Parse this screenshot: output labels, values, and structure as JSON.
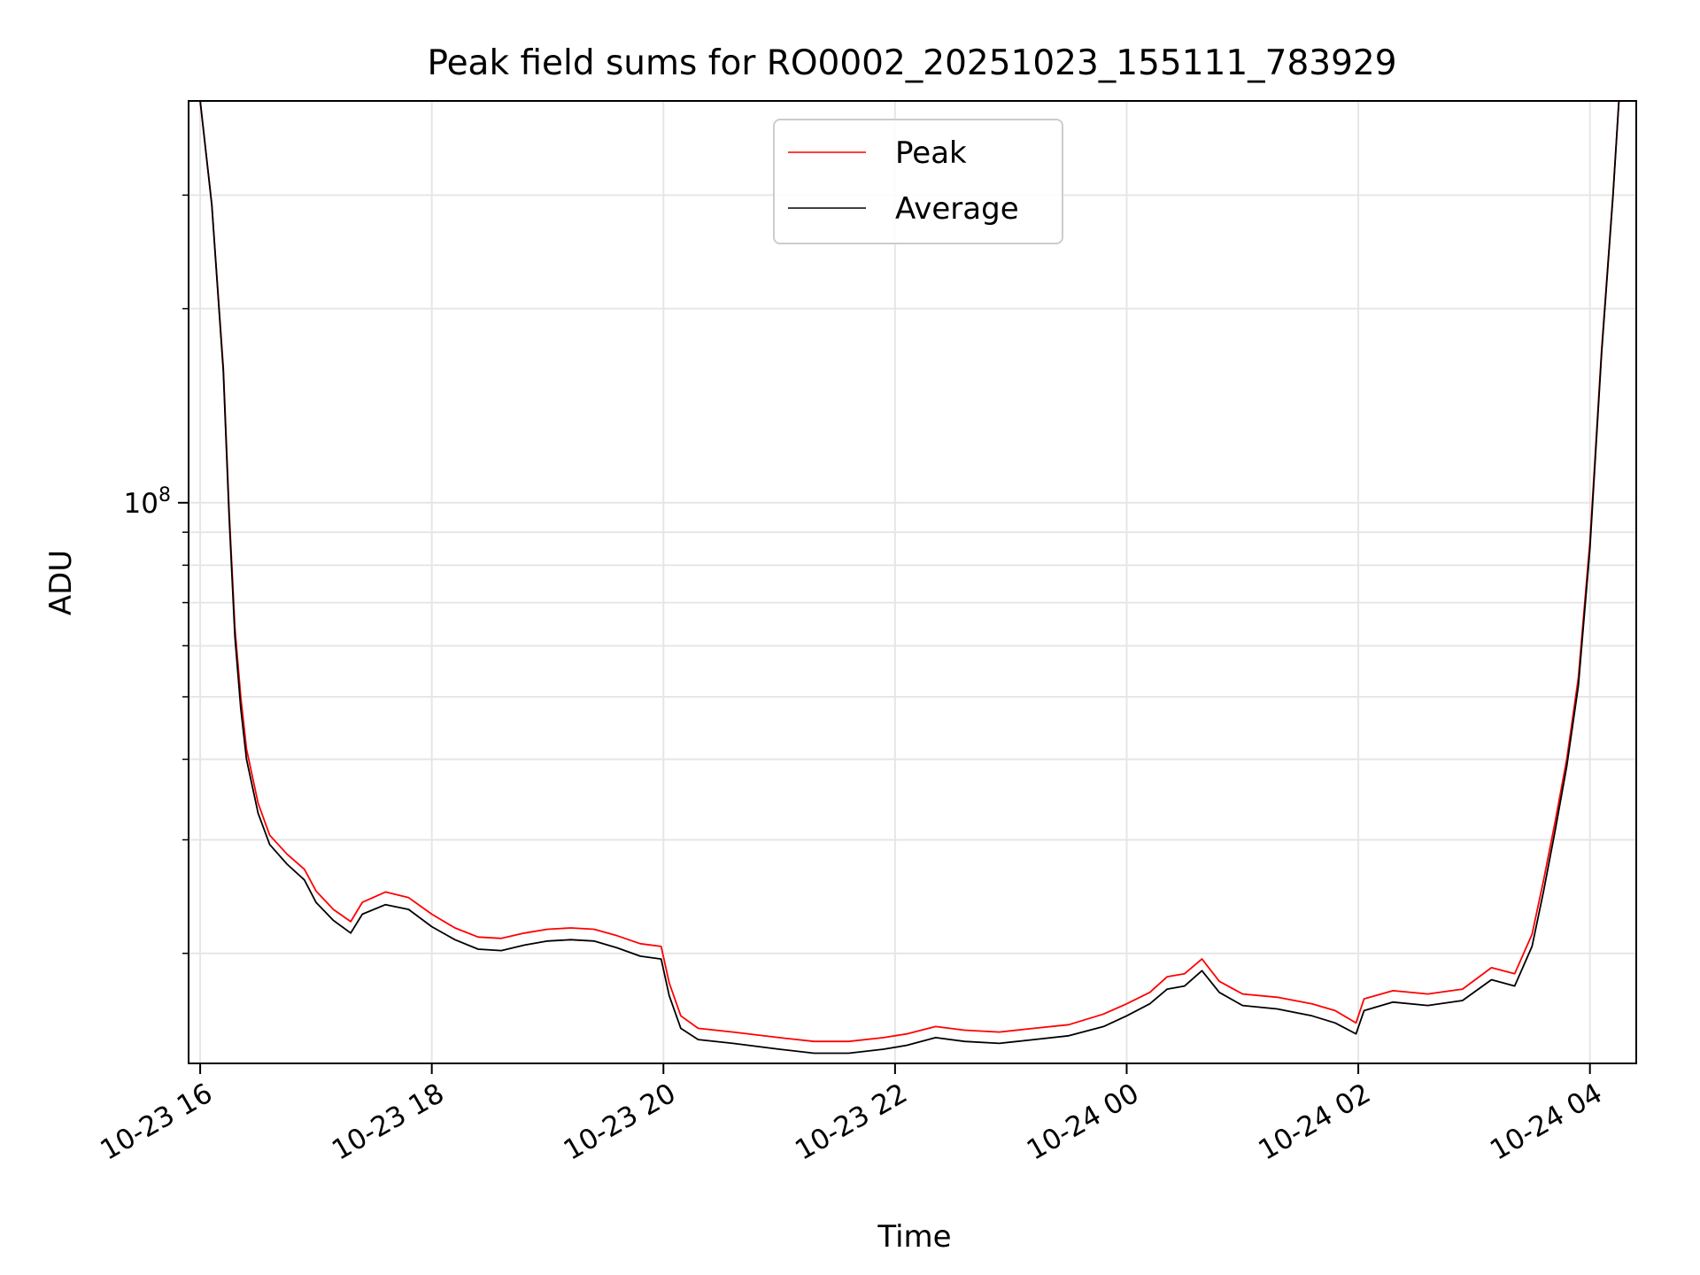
{
  "chart_data": {
    "type": "line",
    "title": "Peak field sums for RO0002_20251023_155111_783929",
    "xlabel": "Time",
    "ylabel": "ADU",
    "y_scale": "log",
    "ylim": [
      13500000,
      420000000
    ],
    "xlim_hours_since_10_23_00": [
      15.9,
      28.4
    ],
    "grid": true,
    "legend_position": "upper center",
    "x_ticks": [
      {
        "label": "10-23 16",
        "hour": 16
      },
      {
        "label": "10-23 18",
        "hour": 18
      },
      {
        "label": "10-23 20",
        "hour": 20
      },
      {
        "label": "10-23 22",
        "hour": 22
      },
      {
        "label": "10-24 00",
        "hour": 24
      },
      {
        "label": "10-24 02",
        "hour": 26
      },
      {
        "label": "10-24 04",
        "hour": 28
      }
    ],
    "y_major_tick": {
      "base": "10",
      "exponent": "8",
      "value": 100000000
    },
    "y_minor_ticks": [
      20000000,
      30000000,
      40000000,
      50000000,
      60000000,
      70000000,
      80000000,
      90000000,
      200000000,
      300000000
    ],
    "series": [
      {
        "name": "Average",
        "color": "#000000",
        "points": [
          [
            16.0,
            420000000
          ],
          [
            16.1,
            290000000
          ],
          [
            16.2,
            160000000
          ],
          [
            16.25,
            95000000
          ],
          [
            16.3,
            62000000
          ],
          [
            16.35,
            48000000
          ],
          [
            16.4,
            40000000
          ],
          [
            16.5,
            33000000
          ],
          [
            16.6,
            29500000
          ],
          [
            16.75,
            27500000
          ],
          [
            16.9,
            26000000
          ],
          [
            17.0,
            24000000
          ],
          [
            17.15,
            22500000
          ],
          [
            17.3,
            21500000
          ],
          [
            17.4,
            23000000
          ],
          [
            17.6,
            23800000
          ],
          [
            17.8,
            23400000
          ],
          [
            18.0,
            22000000
          ],
          [
            18.2,
            21000000
          ],
          [
            18.4,
            20300000
          ],
          [
            18.6,
            20200000
          ],
          [
            18.8,
            20600000
          ],
          [
            19.0,
            20900000
          ],
          [
            19.2,
            21000000
          ],
          [
            19.4,
            20900000
          ],
          [
            19.6,
            20400000
          ],
          [
            19.8,
            19800000
          ],
          [
            19.98,
            19600000
          ],
          [
            20.05,
            17200000
          ],
          [
            20.15,
            15300000
          ],
          [
            20.3,
            14700000
          ],
          [
            20.6,
            14500000
          ],
          [
            21.0,
            14200000
          ],
          [
            21.3,
            14000000
          ],
          [
            21.6,
            14000000
          ],
          [
            21.9,
            14200000
          ],
          [
            22.1,
            14400000
          ],
          [
            22.35,
            14800000
          ],
          [
            22.6,
            14600000
          ],
          [
            22.9,
            14500000
          ],
          [
            23.2,
            14700000
          ],
          [
            23.5,
            14900000
          ],
          [
            23.8,
            15400000
          ],
          [
            24.0,
            16000000
          ],
          [
            24.2,
            16700000
          ],
          [
            24.35,
            17600000
          ],
          [
            24.5,
            17800000
          ],
          [
            24.65,
            18800000
          ],
          [
            24.8,
            17400000
          ],
          [
            25.0,
            16600000
          ],
          [
            25.3,
            16400000
          ],
          [
            25.6,
            16000000
          ],
          [
            25.8,
            15600000
          ],
          [
            25.98,
            15000000
          ],
          [
            26.05,
            16300000
          ],
          [
            26.3,
            16800000
          ],
          [
            26.6,
            16600000
          ],
          [
            26.9,
            16900000
          ],
          [
            27.15,
            18200000
          ],
          [
            27.35,
            17800000
          ],
          [
            27.5,
            20500000
          ],
          [
            27.6,
            25000000
          ],
          [
            27.7,
            31000000
          ],
          [
            27.8,
            39000000
          ],
          [
            27.9,
            52000000
          ],
          [
            28.0,
            85000000
          ],
          [
            28.1,
            170000000
          ],
          [
            28.2,
            300000000
          ],
          [
            28.25,
            420000000
          ]
        ]
      },
      {
        "name": "Peak",
        "color": "#ff0000",
        "points": [
          [
            16.0,
            420000000
          ],
          [
            16.1,
            290000000
          ],
          [
            16.2,
            162000000
          ],
          [
            16.25,
            97000000
          ],
          [
            16.3,
            64000000
          ],
          [
            16.35,
            50000000
          ],
          [
            16.4,
            41500000
          ],
          [
            16.5,
            34200000
          ],
          [
            16.6,
            30500000
          ],
          [
            16.75,
            28500000
          ],
          [
            16.9,
            27000000
          ],
          [
            17.0,
            25000000
          ],
          [
            17.15,
            23400000
          ],
          [
            17.3,
            22400000
          ],
          [
            17.4,
            24000000
          ],
          [
            17.6,
            24900000
          ],
          [
            17.8,
            24400000
          ],
          [
            18.0,
            23000000
          ],
          [
            18.2,
            21900000
          ],
          [
            18.4,
            21200000
          ],
          [
            18.6,
            21100000
          ],
          [
            18.8,
            21500000
          ],
          [
            19.0,
            21800000
          ],
          [
            19.2,
            21900000
          ],
          [
            19.4,
            21800000
          ],
          [
            19.6,
            21300000
          ],
          [
            19.8,
            20700000
          ],
          [
            19.98,
            20500000
          ],
          [
            20.05,
            18000000
          ],
          [
            20.15,
            16000000
          ],
          [
            20.3,
            15300000
          ],
          [
            20.6,
            15100000
          ],
          [
            21.0,
            14800000
          ],
          [
            21.3,
            14600000
          ],
          [
            21.6,
            14600000
          ],
          [
            21.9,
            14800000
          ],
          [
            22.1,
            15000000
          ],
          [
            22.35,
            15400000
          ],
          [
            22.6,
            15200000
          ],
          [
            22.9,
            15100000
          ],
          [
            23.2,
            15300000
          ],
          [
            23.5,
            15500000
          ],
          [
            23.8,
            16100000
          ],
          [
            24.0,
            16700000
          ],
          [
            24.2,
            17400000
          ],
          [
            24.35,
            18400000
          ],
          [
            24.5,
            18600000
          ],
          [
            24.65,
            19600000
          ],
          [
            24.8,
            18100000
          ],
          [
            25.0,
            17300000
          ],
          [
            25.3,
            17100000
          ],
          [
            25.6,
            16700000
          ],
          [
            25.8,
            16300000
          ],
          [
            25.98,
            15600000
          ],
          [
            26.05,
            17000000
          ],
          [
            26.3,
            17500000
          ],
          [
            26.6,
            17300000
          ],
          [
            26.9,
            17600000
          ],
          [
            27.15,
            19000000
          ],
          [
            27.35,
            18600000
          ],
          [
            27.5,
            21400000
          ],
          [
            27.6,
            26000000
          ],
          [
            27.7,
            32000000
          ],
          [
            27.8,
            40000000
          ],
          [
            27.9,
            53500000
          ],
          [
            28.0,
            87000000
          ],
          [
            28.1,
            172000000
          ],
          [
            28.2,
            302000000
          ],
          [
            28.25,
            420000000
          ]
        ]
      }
    ]
  }
}
